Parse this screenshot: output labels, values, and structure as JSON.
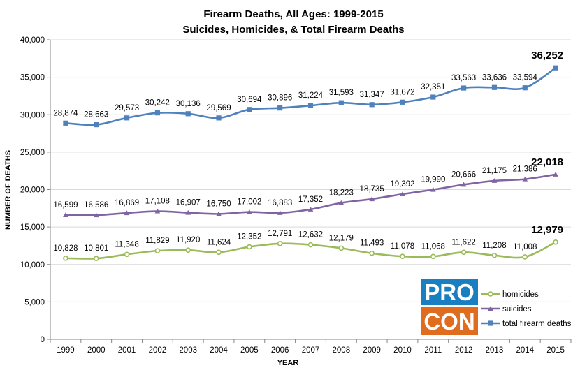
{
  "chart_data": {
    "type": "line",
    "title": "Firearm Deaths, All Ages: 1999-2015",
    "subtitle": "Suicides, Homicides, & Total Firearm Deaths",
    "xlabel": "YEAR",
    "ylabel": "NUMBER OF DEATHS",
    "ylim": [
      0,
      40000
    ],
    "yticks": [
      0,
      5000,
      10000,
      15000,
      20000,
      25000,
      30000,
      35000,
      40000
    ],
    "ytick_labels": [
      "0",
      "5,000",
      "10,000",
      "15,000",
      "20,000",
      "25,000",
      "30,000",
      "35,000",
      "40,000"
    ],
    "grid": "horizontal",
    "legend_position": "bottom-right",
    "categories": [
      "1999",
      "2000",
      "2001",
      "2002",
      "2003",
      "2004",
      "2005",
      "2006",
      "2007",
      "2008",
      "2009",
      "2010",
      "2011",
      "2012",
      "2013",
      "2014",
      "2015"
    ],
    "series": [
      {
        "name": "homicides",
        "color": "#9bbb59",
        "marker": "circle",
        "values": [
          10828,
          10801,
          11348,
          11829,
          11920,
          11624,
          12352,
          12791,
          12632,
          12179,
          11493,
          11078,
          11068,
          11622,
          11208,
          11008,
          12979
        ],
        "labels": [
          "10,828",
          "10,801",
          "11,348",
          "11,829",
          "11,920",
          "11,624",
          "12,352",
          "12,791",
          "12,632",
          "12,179",
          "11,493",
          "11,078",
          "11,068",
          "11,622",
          "11,208",
          "11,008",
          "12,979"
        ]
      },
      {
        "name": "suicides",
        "color": "#8064a2",
        "marker": "triangle",
        "values": [
          16599,
          16586,
          16869,
          17108,
          16907,
          16750,
          17002,
          16883,
          17352,
          18223,
          18735,
          19392,
          19990,
          20666,
          21175,
          21386,
          22018
        ],
        "labels": [
          "16,599",
          "16,586",
          "16,869",
          "17,108",
          "16,907",
          "16,750",
          "17,002",
          "16,883",
          "17,352",
          "18,223",
          "18,735",
          "19,392",
          "19,990",
          "20,666",
          "21,175",
          "21,386",
          "22,018"
        ]
      },
      {
        "name": "total firearm deaths",
        "color": "#4f81bd",
        "marker": "square",
        "values": [
          28874,
          28663,
          29573,
          30242,
          30136,
          29569,
          30694,
          30896,
          31224,
          31593,
          31347,
          31672,
          32351,
          33563,
          33636,
          33594,
          36252
        ],
        "labels": [
          "28,874",
          "28,663",
          "29,573",
          "30,242",
          "30,136",
          "29,569",
          "30,694",
          "30,896",
          "31,224",
          "31,593",
          "31,347",
          "31,672",
          "32,351",
          "33,563",
          "33,636",
          "33,594",
          "36,252"
        ]
      }
    ]
  },
  "logo": {
    "line1": "PRO",
    "line2": "CON",
    "color1": "#1a7fc1",
    "color2": "#e06c1f"
  }
}
